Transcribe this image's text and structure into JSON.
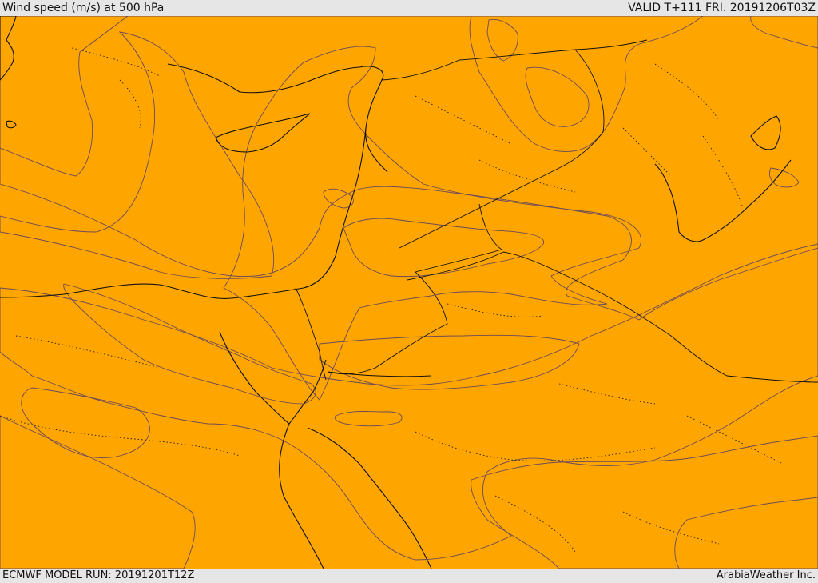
{
  "header": {
    "title": "Wind speed (m/s) at 500 hPa",
    "valid": "VALID T+111 FRI. 20191206T03Z"
  },
  "footer": {
    "model_run": "ECMWF MODEL RUN: 20191201T12Z",
    "credit": "ArabiaWeather Inc."
  },
  "colors": {
    "band_pale": "#fddea8",
    "band_yellow": "#ffff00",
    "band_gold": "#ffc300",
    "band_amber": "#ffa500",
    "band_orange": "#ff8200",
    "band_deep": "#ff6400",
    "land_white": "#ffffff",
    "frame": "#e6e6e6"
  }
}
